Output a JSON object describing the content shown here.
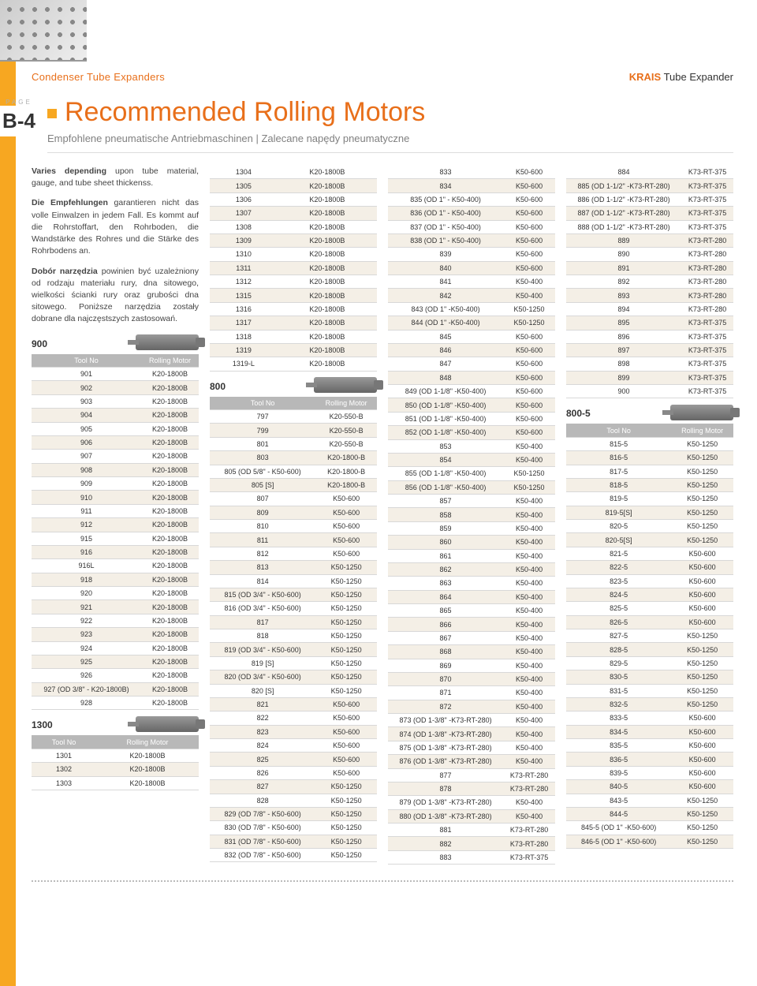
{
  "header": {
    "left": "Condenser Tube Expanders",
    "right_brand": "KRAIS",
    "right_rest": " Tube Expander"
  },
  "pageTag": {
    "label": "PAGE",
    "num": "B-4"
  },
  "title": "Recommended Rolling Motors",
  "subtitle": "Empfohlene pneumatische Antriebmaschinen | Zalecane napędy pneumatyczne",
  "intro": {
    "p1a": "Varies depending",
    "p1b": " upon tube material, gauge, and tube sheet thickenss.",
    "p2a": "Die Empfehlungen",
    "p2b": " garantieren nicht das volle Einwalzen in jedem Fall. Es kommt auf die Rohrstoffart, den Rohrboden, die Wandstärke des Rohres und die Stärke des Rohrbodens an.",
    "p3a": "Dobór narzędzia",
    "p3b": " powinien być uzależniony od rodzaju materiału rury, dna sitowego, wielkości ścianki rury oraz grubości dna sitowego. Poniższe narzędzia zostały dobrane dla najczęstszych zastosowań."
  },
  "hdr": {
    "c1": "Tool No",
    "c2": "Rolling Motor"
  },
  "series": {
    "s900": "900",
    "s1300": "1300",
    "s800": "800",
    "s8005": "800-5"
  },
  "t900": [
    [
      "901",
      "K20-1800B"
    ],
    [
      "902",
      "K20-1800B"
    ],
    [
      "903",
      "K20-1800B"
    ],
    [
      "904",
      "K20-1800B"
    ],
    [
      "905",
      "K20-1800B"
    ],
    [
      "906",
      "K20-1800B"
    ],
    [
      "907",
      "K20-1800B"
    ],
    [
      "908",
      "K20-1800B"
    ],
    [
      "909",
      "K20-1800B"
    ],
    [
      "910",
      "K20-1800B"
    ],
    [
      "911",
      "K20-1800B"
    ],
    [
      "912",
      "K20-1800B"
    ],
    [
      "915",
      "K20-1800B"
    ],
    [
      "916",
      "K20-1800B"
    ],
    [
      "916L",
      "K20-1800B"
    ],
    [
      "918",
      "K20-1800B"
    ],
    [
      "920",
      "K20-1800B"
    ],
    [
      "921",
      "K20-1800B"
    ],
    [
      "922",
      "K20-1800B"
    ],
    [
      "923",
      "K20-1800B"
    ],
    [
      "924",
      "K20-1800B"
    ],
    [
      "925",
      "K20-1800B"
    ],
    [
      "926",
      "K20-1800B"
    ],
    [
      "927 (OD 3/8\" - K20-1800B)",
      "K20-1800B"
    ],
    [
      "928",
      "K20-1800B"
    ]
  ],
  "t1300": [
    [
      "1301",
      "K20-1800B"
    ],
    [
      "1302",
      "K20-1800B"
    ],
    [
      "1303",
      "K20-1800B"
    ]
  ],
  "t1300b": [
    [
      "1304",
      "K20-1800B"
    ],
    [
      "1305",
      "K20-1800B"
    ],
    [
      "1306",
      "K20-1800B"
    ],
    [
      "1307",
      "K20-1800B"
    ],
    [
      "1308",
      "K20-1800B"
    ],
    [
      "1309",
      "K20-1800B"
    ],
    [
      "1310",
      "K20-1800B"
    ],
    [
      "1311",
      "K20-1800B"
    ],
    [
      "1312",
      "K20-1800B"
    ],
    [
      "1315",
      "K20-1800B"
    ],
    [
      "1316",
      "K20-1800B"
    ],
    [
      "1317",
      "K20-1800B"
    ],
    [
      "1318",
      "K20-1800B"
    ],
    [
      "1319",
      "K20-1800B"
    ],
    [
      "1319-L",
      "K20-1800B"
    ]
  ],
  "t800": [
    [
      "797",
      "K20-550-B"
    ],
    [
      "799",
      "K20-550-B"
    ],
    [
      "801",
      "K20-550-B"
    ],
    [
      "803",
      "K20-1800-B"
    ],
    [
      "805 (OD 5/8\" - K50-600)",
      "K20-1800-B"
    ],
    [
      "805 [S]",
      "K20-1800-B"
    ],
    [
      "807",
      "K50-600"
    ],
    [
      "809",
      "K50-600"
    ],
    [
      "810",
      "K50-600"
    ],
    [
      "811",
      "K50-600"
    ],
    [
      "812",
      "K50-600"
    ],
    [
      "813",
      "K50-1250"
    ],
    [
      "814",
      "K50-1250"
    ],
    [
      "815 (OD 3/4\" - K50-600)",
      "K50-1250"
    ],
    [
      "816 (OD 3/4\" - K50-600)",
      "K50-1250"
    ],
    [
      "817",
      "K50-1250"
    ],
    [
      "818",
      "K50-1250"
    ],
    [
      "819 (OD 3/4\" - K50-600)",
      "K50-1250"
    ],
    [
      "819 [S]",
      "K50-1250"
    ],
    [
      "820 (OD 3/4\" - K50-600)",
      "K50-1250"
    ],
    [
      "820 [S]",
      "K50-1250"
    ],
    [
      "821",
      "K50-600"
    ],
    [
      "822",
      "K50-600"
    ],
    [
      "823",
      "K50-600"
    ],
    [
      "824",
      "K50-600"
    ],
    [
      "825",
      "K50-600"
    ],
    [
      "826",
      "K50-600"
    ],
    [
      "827",
      "K50-1250"
    ],
    [
      "828",
      "K50-1250"
    ],
    [
      "829 (OD 7/8\" - K50-600)",
      "K50-1250"
    ],
    [
      "830 (OD 7/8\" - K50-600)",
      "K50-1250"
    ],
    [
      "831 (OD 7/8\" - K50-600)",
      "K50-1250"
    ],
    [
      "832 (OD 7/8\" - K50-600)",
      "K50-1250"
    ]
  ],
  "t800b": [
    [
      "833",
      "K50-600"
    ],
    [
      "834",
      "K50-600"
    ],
    [
      "835 (OD 1\" - K50-400)",
      "K50-600"
    ],
    [
      "836 (OD 1\" - K50-400)",
      "K50-600"
    ],
    [
      "837 (OD 1\" - K50-400)",
      "K50-600"
    ],
    [
      "838 (OD 1\" - K50-400)",
      "K50-600"
    ],
    [
      "839",
      "K50-600"
    ],
    [
      "840",
      "K50-600"
    ],
    [
      "841",
      "K50-400"
    ],
    [
      "842",
      "K50-400"
    ],
    [
      "843 (OD 1\" -K50-400)",
      "K50-1250"
    ],
    [
      "844 (OD 1\" -K50-400)",
      "K50-1250"
    ],
    [
      "845",
      "K50-600"
    ],
    [
      "846",
      "K50-600"
    ],
    [
      "847",
      "K50-600"
    ],
    [
      "848",
      "K50-600"
    ],
    [
      "849 (OD 1-1/8\" -K50-400)",
      "K50-600"
    ],
    [
      "850 (OD 1-1/8\" -K50-400)",
      "K50-600"
    ],
    [
      "851 (OD 1-1/8\" -K50-400)",
      "K50-600"
    ],
    [
      "852 (OD 1-1/8\" -K50-400)",
      "K50-600"
    ],
    [
      "853",
      "K50-400"
    ],
    [
      "854",
      "K50-400"
    ],
    [
      "855 (OD 1-1/8\" -K50-400)",
      "K50-1250"
    ],
    [
      "856 (OD 1-1/8\" -K50-400)",
      "K50-1250"
    ],
    [
      "857",
      "K50-400"
    ],
    [
      "858",
      "K50-400"
    ],
    [
      "859",
      "K50-400"
    ],
    [
      "860",
      "K50-400"
    ],
    [
      "861",
      "K50-400"
    ],
    [
      "862",
      "K50-400"
    ],
    [
      "863",
      "K50-400"
    ],
    [
      "864",
      "K50-400"
    ],
    [
      "865",
      "K50-400"
    ],
    [
      "866",
      "K50-400"
    ],
    [
      "867",
      "K50-400"
    ],
    [
      "868",
      "K50-400"
    ],
    [
      "869",
      "K50-400"
    ],
    [
      "870",
      "K50-400"
    ],
    [
      "871",
      "K50-400"
    ],
    [
      "872",
      "K50-400"
    ],
    [
      "873 (OD 1-3/8\" -K73-RT-280)",
      "K50-400"
    ],
    [
      "874 (OD 1-3/8\" -K73-RT-280)",
      "K50-400"
    ],
    [
      "875 (OD 1-3/8\" -K73-RT-280)",
      "K50-400"
    ],
    [
      "876 (OD 1-3/8\" -K73-RT-280)",
      "K50-400"
    ],
    [
      "877",
      "K73-RT-280"
    ],
    [
      "878",
      "K73-RT-280"
    ],
    [
      "879 (OD 1-3/8\" -K73-RT-280)",
      "K50-400"
    ],
    [
      "880 (OD 1-3/8\" -K73-RT-280)",
      "K50-400"
    ],
    [
      "881",
      "K73-RT-280"
    ],
    [
      "882",
      "K73-RT-280"
    ],
    [
      "883",
      "K73-RT-375"
    ]
  ],
  "t800c": [
    [
      "884",
      "K73-RT-375"
    ],
    [
      "885 (OD 1-1/2\" -K73-RT-280)",
      "K73-RT-375"
    ],
    [
      "886 (OD 1-1/2\" -K73-RT-280)",
      "K73-RT-375"
    ],
    [
      "887 (OD 1-1/2\" -K73-RT-280)",
      "K73-RT-375"
    ],
    [
      "888 (OD 1-1/2\" -K73-RT-280)",
      "K73-RT-375"
    ],
    [
      "889",
      "K73-RT-280"
    ],
    [
      "890",
      "K73-RT-280"
    ],
    [
      "891",
      "K73-RT-280"
    ],
    [
      "892",
      "K73-RT-280"
    ],
    [
      "893",
      "K73-RT-280"
    ],
    [
      "894",
      "K73-RT-280"
    ],
    [
      "895",
      "K73-RT-375"
    ],
    [
      "896",
      "K73-RT-375"
    ],
    [
      "897",
      "K73-RT-375"
    ],
    [
      "898",
      "K73-RT-375"
    ],
    [
      "899",
      "K73-RT-375"
    ],
    [
      "900",
      "K73-RT-375"
    ]
  ],
  "t8005": [
    [
      "815-5",
      "K50-1250"
    ],
    [
      "816-5",
      "K50-1250"
    ],
    [
      "817-5",
      "K50-1250"
    ],
    [
      "818-5",
      "K50-1250"
    ],
    [
      "819-5",
      "K50-1250"
    ],
    [
      "819-5[S]",
      "K50-1250"
    ],
    [
      "820-5",
      "K50-1250"
    ],
    [
      "820-5[S]",
      "K50-1250"
    ],
    [
      "821-5",
      "K50-600"
    ],
    [
      "822-5",
      "K50-600"
    ],
    [
      "823-5",
      "K50-600"
    ],
    [
      "824-5",
      "K50-600"
    ],
    [
      "825-5",
      "K50-600"
    ],
    [
      "826-5",
      "K50-600"
    ],
    [
      "827-5",
      "K50-1250"
    ],
    [
      "828-5",
      "K50-1250"
    ],
    [
      "829-5",
      "K50-1250"
    ],
    [
      "830-5",
      "K50-1250"
    ],
    [
      "831-5",
      "K50-1250"
    ],
    [
      "832-5",
      "K50-1250"
    ],
    [
      "833-5",
      "K50-600"
    ],
    [
      "834-5",
      "K50-600"
    ],
    [
      "835-5",
      "K50-600"
    ],
    [
      "836-5",
      "K50-600"
    ],
    [
      "839-5",
      "K50-600"
    ],
    [
      "840-5",
      "K50-600"
    ],
    [
      "843-5",
      "K50-1250"
    ],
    [
      "844-5",
      "K50-1250"
    ],
    [
      "845-5 (OD 1\" -K50-600)",
      "K50-1250"
    ],
    [
      "846-5 (OD 1\" -K50-600)",
      "K50-1250"
    ]
  ]
}
